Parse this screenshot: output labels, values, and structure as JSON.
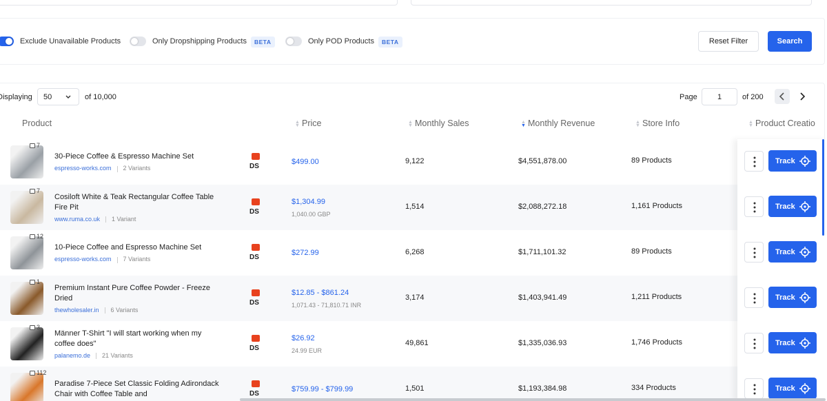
{
  "filters": {
    "toggles": [
      {
        "label": "Exclude Unavailable Products",
        "on": true
      },
      {
        "label": "Only Dropshipping Products",
        "badge": "BETA",
        "on": false
      },
      {
        "label": "Only POD Products",
        "badge": "BETA",
        "on": false
      }
    ],
    "reset": "Reset Filter",
    "search": "Search"
  },
  "pagination": {
    "displaying": "Displaying",
    "page_size": "50",
    "of_total": "of 10,000",
    "page_label": "Page",
    "page_value": "1",
    "of_pages": "of 200"
  },
  "table": {
    "headers": [
      "Product",
      "Price",
      "Monthly Sales",
      "Monthly Revenue",
      "Store Info",
      "Product Creatio"
    ],
    "ds_label": "DS",
    "track_label": "Track",
    "rows": [
      {
        "images": "7",
        "name": "30-Piece Coffee & Espresso Machine Set",
        "store": "espresso-works.com",
        "variants": "2 Variants",
        "price": "$499.00",
        "sales": "9,122",
        "revenue": "$4,551,878.00",
        "store_info": "89 Products"
      },
      {
        "images": "7",
        "name": "Cosiloft White & Teak Rectangular Coffee Table Fire Pit",
        "store": "www.ruma.co.uk",
        "variants": "1 Variant",
        "price": "$1,304.99",
        "price_sub": "1,040.00 GBP",
        "sales": "1,514",
        "revenue": "$2,088,272.18",
        "store_info": "1,161 Products"
      },
      {
        "images": "12",
        "name": "10-Piece Coffee and Espresso Machine Set",
        "store": "espresso-works.com",
        "variants": "7 Variants",
        "price": "$272.99",
        "sales": "6,268",
        "revenue": "$1,711,101.32",
        "store_info": "89 Products"
      },
      {
        "images": "1",
        "name": "Premium Instant Pure Coffee Powder - Freeze Dried",
        "store": "thewholesaler.in",
        "variants": "6 Variants",
        "price": "$12.85 - $861.24",
        "price_sub": "1,071.43 - 71,810.71 INR",
        "sales": "3,174",
        "revenue": "$1,403,941.49",
        "store_info": "1,211 Products"
      },
      {
        "images": "3",
        "name": "Männer T-Shirt \"I will start working when my coffee does\"",
        "store": "palanemo.de",
        "variants": "21 Variants",
        "price": "$26.92",
        "price_sub": "24.99 EUR",
        "sales": "49,861",
        "revenue": "$1,335,036.93",
        "store_info": "1,746 Products"
      },
      {
        "images": "112",
        "name": "Paradise 7-Piece Set Classic Folding Adirondack Chair with Coffee Table and",
        "price": "$759.99 - $799.99",
        "sales": "1,501",
        "revenue": "$1,193,384.98",
        "store_info": "334 Products"
      }
    ]
  }
}
